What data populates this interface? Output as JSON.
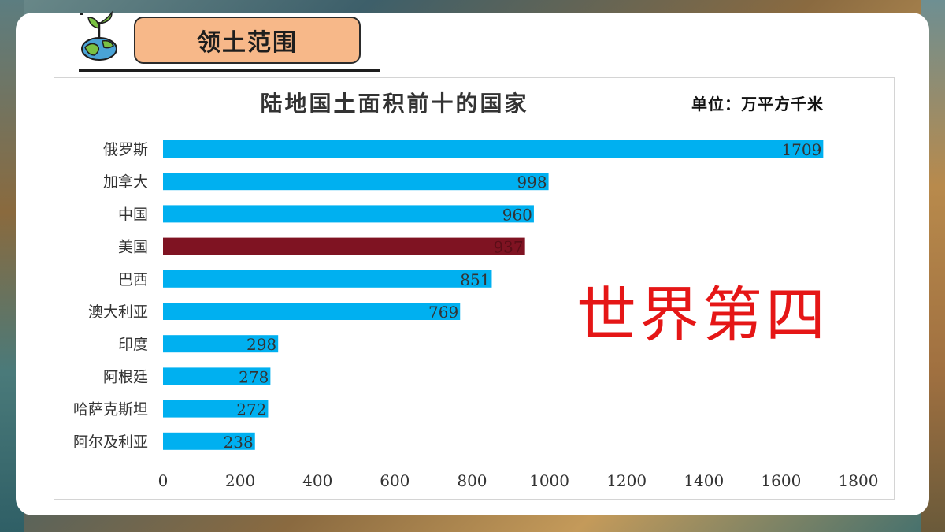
{
  "header": {
    "section_title": "领土范围",
    "logo_icon": "plant-globe-icon"
  },
  "chart_data": {
    "type": "bar",
    "orientation": "horizontal",
    "title": "陆地国土面积前十的国家",
    "unit_label": "单位：万平方千米",
    "categories": [
      "俄罗斯",
      "加拿大",
      "中国",
      "美国",
      "巴西",
      "澳大利亚",
      "印度",
      "阿根廷",
      "哈萨克斯坦",
      "阿尔及利亚"
    ],
    "values": [
      1709,
      998,
      960,
      937,
      851,
      769,
      298,
      278,
      272,
      238
    ],
    "data_labels": [
      "1709",
      "998",
      "960",
      "937",
      "851",
      "769",
      "298",
      "278",
      "272",
      "238"
    ],
    "xlim": [
      0,
      1800
    ],
    "x_ticks": [
      0,
      200,
      400,
      600,
      800,
      1000,
      1200,
      1400,
      1600,
      1800
    ],
    "bar_color": "#00b0f0",
    "highlight_color": "#7f1322",
    "highlight_index": 3,
    "grid": false,
    "legend": "none"
  },
  "annotation": {
    "text": "世界第四",
    "color": "#e51616"
  }
}
